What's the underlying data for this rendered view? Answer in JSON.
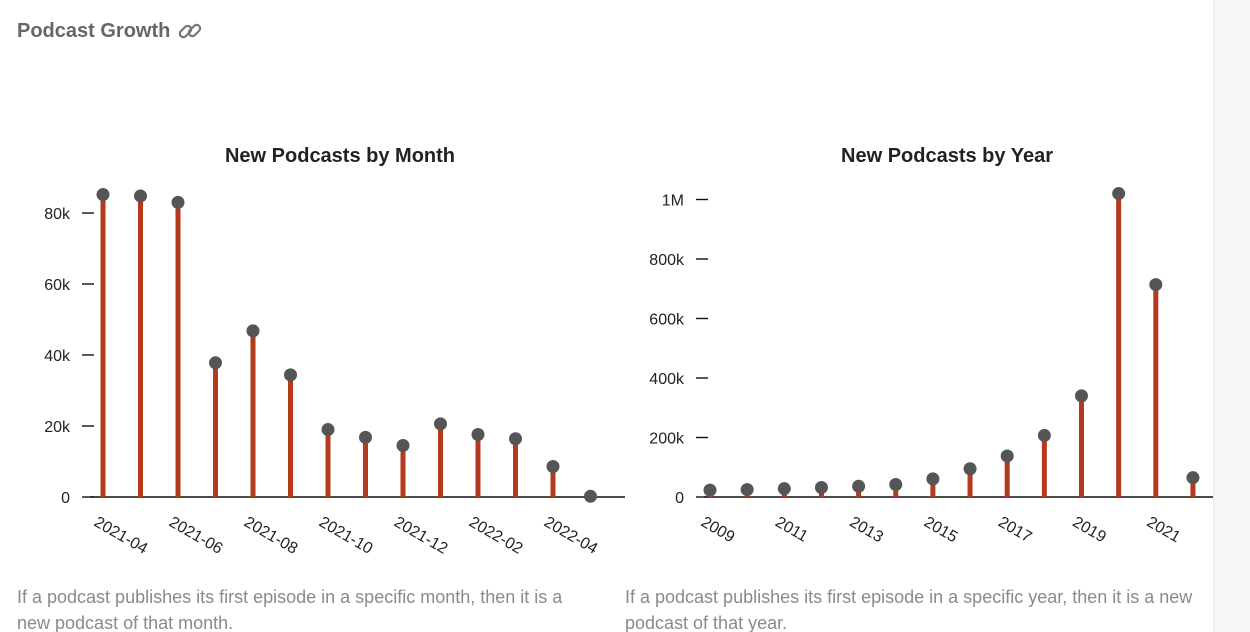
{
  "section": {
    "title": "Podcast Growth",
    "icon": "link-icon"
  },
  "colors": {
    "stem": "#b5391d",
    "dot": "#555555",
    "axis": "#111111",
    "title": "#222222",
    "caption": "#8a8a8a"
  },
  "charts": [
    {
      "id": "monthly",
      "caption": "If a podcast publishes its first episode in a specific month, then it is a new podcast of that month."
    },
    {
      "id": "yearly",
      "caption": "If a podcast publishes its first episode in a specific year, then it is a new podcast of that year."
    }
  ],
  "chart_data": [
    {
      "type": "lollipop",
      "title": "New Podcasts by Month",
      "xlabel": "",
      "ylabel": "",
      "x": [
        "2021-04",
        "2021-05",
        "2021-06",
        "2021-07",
        "2021-08",
        "2021-09",
        "2021-10",
        "2021-11",
        "2021-12",
        "2022-01",
        "2022-02",
        "2022-03",
        "2022-04",
        "2022-05"
      ],
      "values": [
        85200,
        84800,
        83000,
        37800,
        46800,
        34400,
        19000,
        16800,
        14500,
        20600,
        17600,
        16400,
        8600,
        200
      ],
      "x_tick_labels": [
        "2021-04",
        "2021-06",
        "2021-08",
        "2021-10",
        "2021-12",
        "2022-02",
        "2022-04"
      ],
      "y_ticks": [
        0,
        20000,
        40000,
        60000,
        80000
      ],
      "y_tick_labels": [
        "0",
        "20k",
        "40k",
        "60k",
        "80k"
      ],
      "ylim": [
        0,
        88000
      ],
      "grid": false
    },
    {
      "type": "lollipop",
      "title": "New Podcasts by Year",
      "xlabel": "",
      "ylabel": "",
      "x": [
        2009,
        2010,
        2011,
        2012,
        2013,
        2014,
        2015,
        2016,
        2017,
        2018,
        2019,
        2020,
        2021,
        2022
      ],
      "values": [
        23000,
        25000,
        28000,
        32000,
        36000,
        42000,
        61000,
        95000,
        138000,
        207000,
        340000,
        1020000,
        714000,
        65000
      ],
      "x_tick_labels": [
        "2009",
        "2011",
        "2013",
        "2015",
        "2017",
        "2019",
        "2021"
      ],
      "y_ticks": [
        0,
        200000,
        400000,
        600000,
        800000,
        1000000
      ],
      "y_tick_labels": [
        "0",
        "200k",
        "400k",
        "600k",
        "800k",
        "1M"
      ],
      "ylim": [
        0,
        1020000
      ],
      "grid": false
    }
  ]
}
